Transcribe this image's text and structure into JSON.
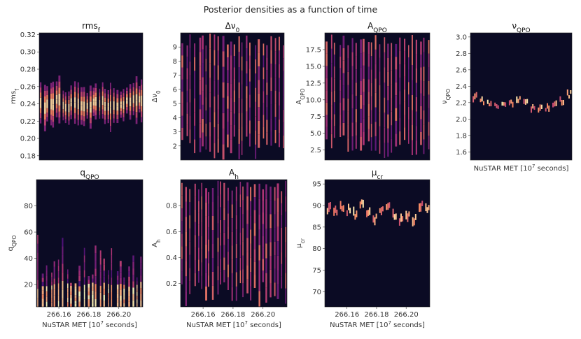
{
  "suptitle": "Posterior densities as a function of time",
  "chart_data": [
    {
      "type": "heatmap",
      "title": "rms_f",
      "ylabel": "rms_f",
      "xlabel": "",
      "xlim": [
        266.145,
        266.216
      ],
      "ylim": [
        0.175,
        0.322
      ],
      "yticks": [
        0.18,
        0.2,
        0.22,
        0.24,
        0.26,
        0.28,
        0.3,
        0.32
      ],
      "ytick_labels": [
        "0.18",
        "0.20",
        "0.22",
        "0.24",
        "0.26",
        "0.28",
        "0.30",
        "0.32"
      ],
      "xticks": [],
      "xtick_labels": [],
      "colormap": "magma",
      "pattern": {
        "mode": "peaked",
        "center": 0.24,
        "width": 0.018,
        "stripes": 34
      }
    },
    {
      "type": "heatmap",
      "title": "Δν_0",
      "ylabel": "Δν_0",
      "xlabel": "",
      "xlim": [
        266.145,
        266.216
      ],
      "ylim": [
        1.0,
        10.0
      ],
      "yticks": [
        2,
        3,
        4,
        5,
        6,
        7,
        8,
        9
      ],
      "ytick_labels": [
        "2",
        "3",
        "4",
        "5",
        "6",
        "7",
        "8",
        "9"
      ],
      "xticks": [],
      "xtick_labels": [],
      "colormap": "magma",
      "pattern": {
        "mode": "broad",
        "center": 5.5,
        "width": 3.0,
        "stripes": 26
      }
    },
    {
      "type": "heatmap",
      "title": "A_QPO",
      "ylabel": "A_QPO",
      "xlabel": "",
      "xlim": [
        266.145,
        266.216
      ],
      "ylim": [
        1.0,
        20.0
      ],
      "yticks": [
        2.5,
        5.0,
        7.5,
        10.0,
        12.5,
        15.0,
        17.5
      ],
      "ytick_labels": [
        "2.5",
        "5.0",
        "7.5",
        "10.0",
        "12.5",
        "15.0",
        "17.5"
      ],
      "xticks": [],
      "xtick_labels": [],
      "colormap": "magma",
      "pattern": {
        "mode": "broad",
        "center": 9.0,
        "width": 7.0,
        "stripes": 26
      }
    },
    {
      "type": "heatmap",
      "title": "ν_QPO",
      "ylabel": "ν_QPO",
      "xlabel": "NuSTAR MET [10^7 seconds]",
      "xlim": [
        266.145,
        266.216
      ],
      "ylim": [
        1.5,
        3.05
      ],
      "yticks": [
        1.6,
        1.8,
        2.0,
        2.2,
        2.4,
        2.6,
        2.8,
        3.0
      ],
      "ytick_labels": [
        "1.6",
        "1.8",
        "2.0",
        "2.2",
        "2.4",
        "2.6",
        "2.8",
        "3.0"
      ],
      "xticks": [],
      "xtick_labels": [],
      "colormap": "magma",
      "pattern": {
        "mode": "blobs",
        "track": [
          2.27,
          2.22,
          2.18,
          2.15,
          2.17,
          2.2,
          2.25,
          2.2,
          2.14,
          2.12,
          2.14,
          2.18,
          2.22,
          2.3
        ],
        "width": 0.05
      }
    },
    {
      "type": "heatmap",
      "title": "q_QPO",
      "ylabel": "q_QPO",
      "xlabel": "NuSTAR MET [10^7 seconds]",
      "xlim": [
        266.145,
        266.216
      ],
      "ylim": [
        3,
        100
      ],
      "yticks": [
        20,
        40,
        60,
        80
      ],
      "ytick_labels": [
        "20",
        "40",
        "60",
        "80"
      ],
      "xticks": [
        266.16,
        266.18,
        266.2
      ],
      "xtick_labels": [
        "266.16",
        "266.18",
        "266.20"
      ],
      "colormap": "magma",
      "pattern": {
        "mode": "bottom",
        "center": 8,
        "width": 12,
        "stripes": 26
      }
    },
    {
      "type": "heatmap",
      "title": "A_h",
      "ylabel": "A_h",
      "xlabel": "NuSTAR MET [10^7 seconds]",
      "xlim": [
        266.145,
        266.216
      ],
      "ylim": [
        0.02,
        1.0
      ],
      "yticks": [
        0.2,
        0.4,
        0.6,
        0.8
      ],
      "ytick_labels": [
        "0.2",
        "0.4",
        "0.6",
        "0.8"
      ],
      "xticks": [
        266.16,
        266.18,
        266.2
      ],
      "xtick_labels": [
        "266.16",
        "266.18",
        "266.20"
      ],
      "colormap": "magma",
      "pattern": {
        "mode": "broad",
        "center": 0.35,
        "width": 0.25,
        "stripes": 28
      }
    },
    {
      "type": "heatmap",
      "title": "μ_cr",
      "ylabel": "μ_cr",
      "xlabel": "NuSTAR MET [10^7 seconds]",
      "xlim": [
        266.145,
        266.216
      ],
      "ylim": [
        66.5,
        96
      ],
      "yticks": [
        70,
        75,
        80,
        85,
        90,
        95
      ],
      "ytick_labels": [
        "70",
        "75",
        "80",
        "85",
        "90",
        "95"
      ],
      "xticks": [
        266.16,
        266.18,
        266.2
      ],
      "xtick_labels": [
        "266.16",
        "266.18",
        "266.20"
      ],
      "colormap": "magma",
      "pattern": {
        "mode": "blobs",
        "track": [
          89.5,
          88.5,
          90.0,
          89.0,
          88.0,
          90.5,
          88.5,
          87.0,
          89.5,
          90.0,
          87.5,
          86.5,
          88.0,
          87.0,
          90.0,
          89.0
        ],
        "width": 1.4
      }
    }
  ]
}
